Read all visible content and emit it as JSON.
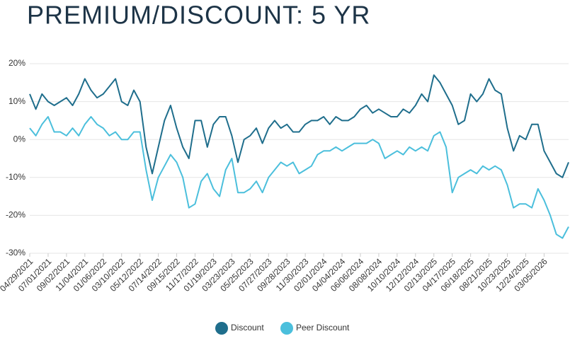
{
  "chart_data": {
    "type": "line",
    "title": "PREMIUM/DISCOUNT: 5 YR",
    "categories": [
      "04/29/2021",
      null,
      null,
      "07/01/2021",
      null,
      null,
      "09/02/2021",
      null,
      null,
      "11/04/2021",
      null,
      null,
      "01/06/2022",
      null,
      null,
      "03/10/2022",
      null,
      null,
      "05/12/2022",
      null,
      null,
      "07/14/2022",
      null,
      null,
      "09/15/2022",
      null,
      null,
      "11/17/2022",
      null,
      null,
      "01/19/2023",
      null,
      null,
      "03/23/2023",
      null,
      null,
      "05/25/2023",
      null,
      null,
      "07/27/2023",
      null,
      null,
      "09/28/2023",
      null,
      null,
      "11/30/2023",
      null,
      null,
      "02/01/2024",
      null,
      null,
      "04/04/2024",
      null,
      null,
      "06/06/2024",
      null,
      null,
      "08/08/2024",
      null,
      null,
      "10/10/2024",
      null,
      null,
      "12/12/2024",
      null,
      null,
      "02/13/2025",
      null,
      null,
      "04/17/2025",
      null,
      null,
      "06/18/2025",
      null,
      null,
      "08/21/2025",
      null,
      null,
      "10/23/2025",
      null,
      null,
      "12/24/2025",
      null,
      null,
      "03/05/2026",
      null,
      null,
      null,
      null
    ],
    "series": [
      {
        "name": "Discount",
        "color": "#1f6e8c",
        "values": [
          12,
          8,
          12,
          10,
          9,
          10,
          11,
          9,
          12,
          16,
          13,
          11,
          12,
          14,
          16,
          10,
          9,
          13,
          10,
          -2,
          -9,
          -2,
          5,
          9,
          3,
          -2,
          -5,
          5,
          5,
          -2,
          4,
          6,
          6,
          1,
          -6,
          0,
          1,
          3,
          -1,
          3,
          5,
          3,
          4,
          2,
          2,
          4,
          5,
          5,
          6,
          4,
          6,
          5,
          5,
          6,
          8,
          9,
          7,
          8,
          7,
          6,
          6,
          8,
          7,
          9,
          12,
          10,
          17,
          15,
          12,
          9,
          4,
          5,
          12,
          10,
          12,
          16,
          13,
          12,
          3,
          -3,
          1,
          0,
          4,
          4,
          -3,
          -6,
          -9,
          -10,
          -6
        ]
      },
      {
        "name": "Peer Discount",
        "color": "#4bbfdc",
        "values": [
          3,
          1,
          4,
          6,
          2,
          2,
          1,
          3,
          1,
          4,
          6,
          4,
          3,
          1,
          2,
          0,
          0,
          2,
          2,
          -8,
          -16,
          -10,
          -7,
          -4,
          -6,
          -10,
          -18,
          -17,
          -11,
          -9,
          -13,
          -15,
          -8,
          -5,
          -14,
          -14,
          -13,
          -11,
          -14,
          -10,
          -8,
          -6,
          -7,
          -6,
          -9,
          -8,
          -7,
          -4,
          -3,
          -3,
          -2,
          -3,
          -2,
          -1,
          -1,
          -1,
          0,
          -1,
          -5,
          -4,
          -3,
          -4,
          -2,
          -3,
          -2,
          -3,
          1,
          2,
          -2,
          -14,
          -10,
          -9,
          -8,
          -9,
          -7,
          -8,
          -7,
          -8,
          -12,
          -18,
          -17,
          -17,
          -18,
          -13,
          -16,
          -20,
          -25,
          -26,
          -23
        ]
      }
    ],
    "ylim": [
      -30,
      20
    ],
    "yticks": [
      {
        "value": 20,
        "label": "20%"
      },
      {
        "value": 10,
        "label": "10%"
      },
      {
        "value": 0,
        "label": "0%"
      },
      {
        "value": -10,
        "label": "-10%"
      },
      {
        "value": -20,
        "label": "-20%"
      },
      {
        "value": -30,
        "label": "-30%"
      }
    ],
    "grid": true,
    "legend": "bottom"
  }
}
